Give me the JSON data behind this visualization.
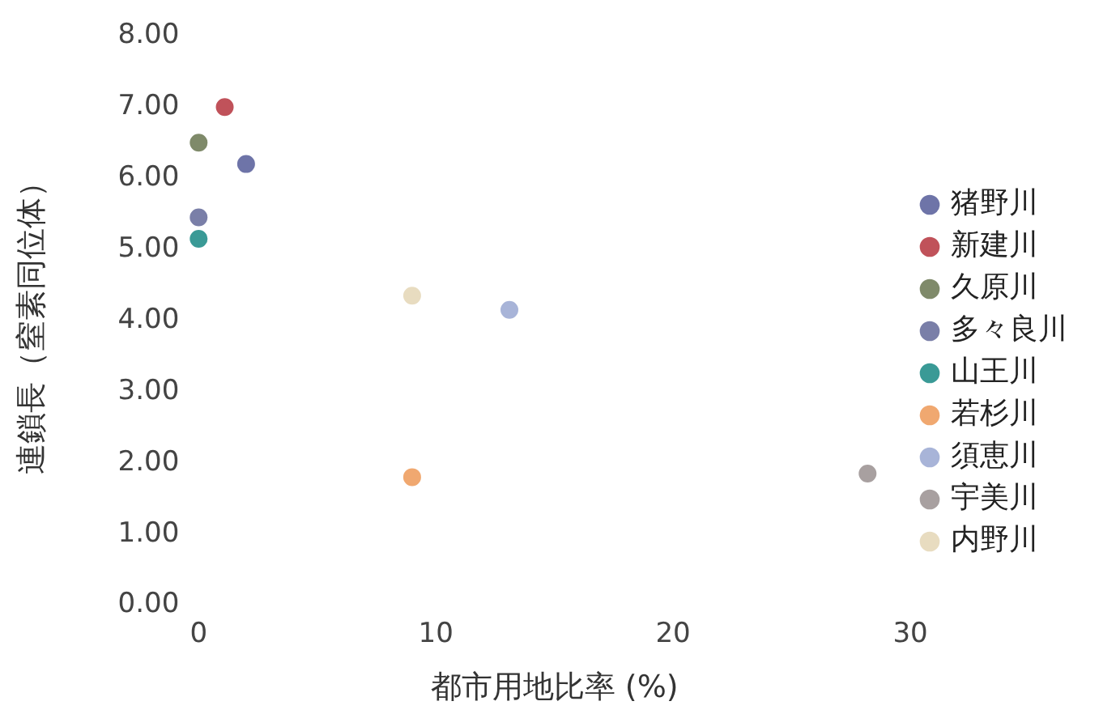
{
  "chart_data": {
    "type": "scatter",
    "xlabel": "都市用地比率 (%)",
    "ylabel": "連鎖長（窒素同位体）",
    "xlim": [
      0,
      30
    ],
    "xticks": [
      0,
      10,
      20,
      30
    ],
    "ylim": [
      0,
      8
    ],
    "yticks": [
      {
        "value": 0,
        "label": "0.00"
      },
      {
        "value": 1,
        "label": "1.00"
      },
      {
        "value": 2,
        "label": "2.00"
      },
      {
        "value": 3,
        "label": "3.00"
      },
      {
        "value": 4,
        "label": "4.00"
      },
      {
        "value": 5,
        "label": "5.00"
      },
      {
        "value": 6,
        "label": "6.00"
      },
      {
        "value": 7,
        "label": "7.00"
      },
      {
        "value": 8,
        "label": "8.00"
      }
    ],
    "grid": false,
    "legend": "right",
    "marker": "circle",
    "series": [
      {
        "name": "猪野川",
        "color": "#6e74a8",
        "x": [
          2.0
        ],
        "values": [
          6.2
        ]
      },
      {
        "name": "新建川",
        "color": "#c0525a",
        "x": [
          1.1
        ],
        "values": [
          7.0
        ]
      },
      {
        "name": "久原川",
        "color": "#7f8a6a",
        "x": [
          0
        ],
        "values": [
          6.5
        ]
      },
      {
        "name": "多々良川",
        "color": "#7a7fa8",
        "x": [
          0
        ],
        "values": [
          5.45
        ]
      },
      {
        "name": "山王川",
        "color": "#3a9a96",
        "x": [
          0
        ],
        "values": [
          5.15
        ]
      },
      {
        "name": "若杉川",
        "color": "#f0a870",
        "x": [
          9.0
        ],
        "values": [
          1.8
        ]
      },
      {
        "name": "須恵川",
        "color": "#a8b4d8",
        "x": [
          13.1
        ],
        "values": [
          4.15
        ]
      },
      {
        "name": "宇美川",
        "color": "#a8a0a0",
        "x": [
          28.2
        ],
        "values": [
          1.85
        ]
      },
      {
        "name": "内野川",
        "color": "#e8dcc0",
        "x": [
          9.0
        ],
        "values": [
          4.35
        ]
      }
    ]
  }
}
